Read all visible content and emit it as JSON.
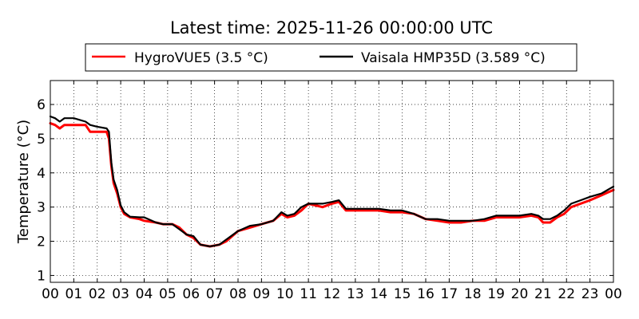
{
  "chart_data": {
    "type": "line",
    "title": "Latest time: 2025-11-26 00:00:00 UTC",
    "xlabel": "",
    "ylabel": "Temperature (°C)",
    "xlim": [
      0,
      24
    ],
    "ylim": [
      0.8,
      6.7
    ],
    "x_ticks": [
      "00",
      "01",
      "02",
      "03",
      "04",
      "05",
      "06",
      "07",
      "08",
      "09",
      "10",
      "11",
      "12",
      "13",
      "14",
      "15",
      "16",
      "17",
      "18",
      "19",
      "20",
      "21",
      "22",
      "23",
      "00"
    ],
    "y_ticks": [
      "1",
      "2",
      "3",
      "4",
      "5",
      "6"
    ],
    "grid": true,
    "legend_position": "top",
    "series": [
      {
        "name": "HygroVUE5 (3.5 °C)",
        "color": "#ff0000",
        "points": [
          [
            0,
            5.45
          ],
          [
            0.2,
            5.4
          ],
          [
            0.4,
            5.3
          ],
          [
            0.6,
            5.4
          ],
          [
            1.0,
            5.4
          ],
          [
            1.5,
            5.4
          ],
          [
            1.7,
            5.2
          ],
          [
            2.0,
            5.2
          ],
          [
            2.4,
            5.2
          ],
          [
            2.5,
            5.0
          ],
          [
            2.6,
            4.2
          ],
          [
            2.7,
            3.7
          ],
          [
            2.85,
            3.4
          ],
          [
            3.0,
            3.0
          ],
          [
            3.15,
            2.8
          ],
          [
            3.4,
            2.7
          ],
          [
            3.8,
            2.65
          ],
          [
            4.0,
            2.6
          ],
          [
            4.5,
            2.55
          ],
          [
            4.8,
            2.5
          ],
          [
            5.2,
            2.5
          ],
          [
            5.5,
            2.4
          ],
          [
            5.8,
            2.2
          ],
          [
            6.1,
            2.1
          ],
          [
            6.4,
            1.9
          ],
          [
            6.8,
            1.85
          ],
          [
            7.2,
            1.9
          ],
          [
            7.5,
            2.0
          ],
          [
            8.0,
            2.3
          ],
          [
            8.5,
            2.4
          ],
          [
            9.0,
            2.5
          ],
          [
            9.5,
            2.6
          ],
          [
            9.85,
            2.8
          ],
          [
            10.1,
            2.7
          ],
          [
            10.4,
            2.75
          ],
          [
            10.7,
            2.9
          ],
          [
            11.0,
            3.1
          ],
          [
            11.3,
            3.05
          ],
          [
            11.6,
            3.0
          ],
          [
            12.0,
            3.1
          ],
          [
            12.3,
            3.15
          ],
          [
            12.6,
            2.9
          ],
          [
            13.0,
            2.9
          ],
          [
            13.5,
            2.9
          ],
          [
            14.0,
            2.9
          ],
          [
            14.5,
            2.85
          ],
          [
            15.0,
            2.85
          ],
          [
            15.5,
            2.8
          ],
          [
            16.0,
            2.65
          ],
          [
            16.5,
            2.6
          ],
          [
            17.0,
            2.55
          ],
          [
            17.5,
            2.55
          ],
          [
            18.0,
            2.6
          ],
          [
            18.5,
            2.6
          ],
          [
            19.0,
            2.7
          ],
          [
            19.5,
            2.7
          ],
          [
            20.0,
            2.7
          ],
          [
            20.5,
            2.75
          ],
          [
            20.8,
            2.7
          ],
          [
            21.0,
            2.55
          ],
          [
            21.3,
            2.55
          ],
          [
            21.6,
            2.7
          ],
          [
            21.9,
            2.8
          ],
          [
            22.2,
            3.0
          ],
          [
            22.6,
            3.1
          ],
          [
            23.0,
            3.2
          ],
          [
            23.5,
            3.35
          ],
          [
            24.0,
            3.5
          ]
        ]
      },
      {
        "name": "Vaisala HMP35D (3.589 °C)",
        "color": "#000000",
        "points": [
          [
            0,
            5.65
          ],
          [
            0.2,
            5.6
          ],
          [
            0.4,
            5.5
          ],
          [
            0.6,
            5.6
          ],
          [
            1.0,
            5.6
          ],
          [
            1.5,
            5.5
          ],
          [
            1.7,
            5.4
          ],
          [
            2.0,
            5.35
          ],
          [
            2.4,
            5.3
          ],
          [
            2.5,
            5.2
          ],
          [
            2.6,
            4.3
          ],
          [
            2.7,
            3.8
          ],
          [
            2.85,
            3.5
          ],
          [
            3.0,
            3.05
          ],
          [
            3.15,
            2.85
          ],
          [
            3.4,
            2.72
          ],
          [
            3.8,
            2.7
          ],
          [
            4.0,
            2.7
          ],
          [
            4.5,
            2.55
          ],
          [
            4.8,
            2.5
          ],
          [
            5.2,
            2.5
          ],
          [
            5.5,
            2.35
          ],
          [
            5.8,
            2.2
          ],
          [
            6.1,
            2.15
          ],
          [
            6.4,
            1.9
          ],
          [
            6.8,
            1.85
          ],
          [
            7.2,
            1.9
          ],
          [
            7.5,
            2.05
          ],
          [
            8.0,
            2.3
          ],
          [
            8.5,
            2.45
          ],
          [
            9.0,
            2.5
          ],
          [
            9.5,
            2.6
          ],
          [
            9.85,
            2.85
          ],
          [
            10.1,
            2.75
          ],
          [
            10.4,
            2.8
          ],
          [
            10.7,
            3.0
          ],
          [
            11.0,
            3.1
          ],
          [
            11.3,
            3.1
          ],
          [
            11.6,
            3.1
          ],
          [
            12.0,
            3.15
          ],
          [
            12.3,
            3.2
          ],
          [
            12.6,
            2.95
          ],
          [
            13.0,
            2.95
          ],
          [
            13.5,
            2.95
          ],
          [
            14.0,
            2.95
          ],
          [
            14.5,
            2.9
          ],
          [
            15.0,
            2.9
          ],
          [
            15.5,
            2.8
          ],
          [
            16.0,
            2.65
          ],
          [
            16.5,
            2.65
          ],
          [
            17.0,
            2.6
          ],
          [
            17.5,
            2.6
          ],
          [
            18.0,
            2.6
          ],
          [
            18.5,
            2.65
          ],
          [
            19.0,
            2.75
          ],
          [
            19.5,
            2.75
          ],
          [
            20.0,
            2.75
          ],
          [
            20.5,
            2.8
          ],
          [
            20.8,
            2.75
          ],
          [
            21.0,
            2.65
          ],
          [
            21.3,
            2.65
          ],
          [
            21.6,
            2.75
          ],
          [
            21.9,
            2.9
          ],
          [
            22.2,
            3.1
          ],
          [
            22.6,
            3.2
          ],
          [
            23.0,
            3.3
          ],
          [
            23.5,
            3.4
          ],
          [
            24.0,
            3.6
          ]
        ]
      }
    ]
  }
}
